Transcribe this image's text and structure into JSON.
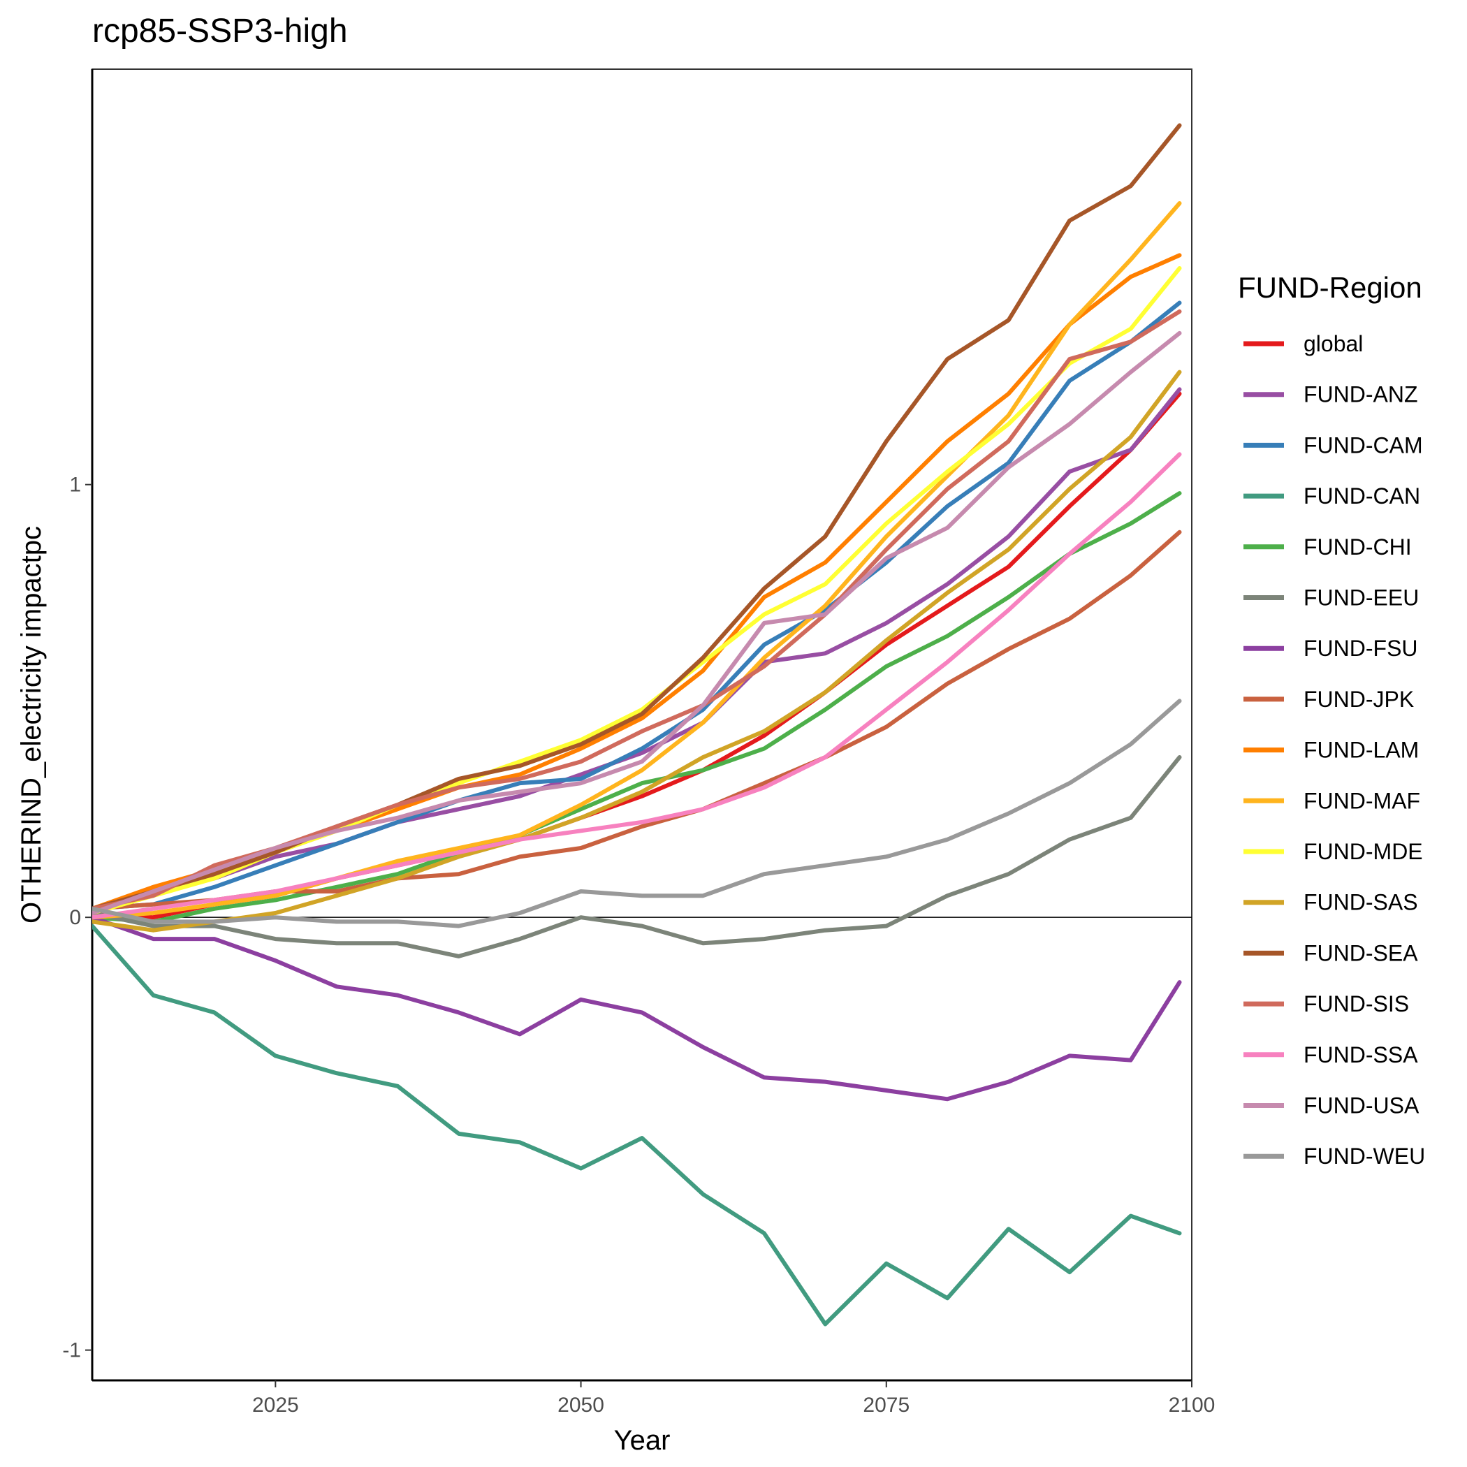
{
  "chart_data": {
    "type": "line",
    "title": "rcp85-SSP3-high",
    "xlabel": "Year",
    "ylabel": "OTHERIND_electricity impactpc",
    "xlim": [
      2010,
      2100
    ],
    "ylim": [
      -1.07,
      1.96
    ],
    "xticks": [
      2025,
      2050,
      2075,
      2100
    ],
    "yticks": [
      -1,
      0,
      1
    ],
    "hline": 0,
    "grid": false,
    "legend": {
      "title": "FUND-Region",
      "position": "right"
    },
    "x": [
      2010,
      2015,
      2020,
      2025,
      2030,
      2035,
      2040,
      2045,
      2050,
      2055,
      2060,
      2065,
      2070,
      2075,
      2080,
      2085,
      2090,
      2095,
      2099
    ],
    "series": [
      {
        "name": "global",
        "color": "#e41a1c",
        "values": [
          0.01,
          0.0,
          0.03,
          0.05,
          0.09,
          0.12,
          0.15,
          0.18,
          0.23,
          0.28,
          0.34,
          0.42,
          0.52,
          0.63,
          0.72,
          0.81,
          0.95,
          1.08,
          1.21
        ]
      },
      {
        "name": "FUND-ANZ",
        "color": "#984ea3",
        "values": [
          0.01,
          0.07,
          0.09,
          0.14,
          0.17,
          0.22,
          0.25,
          0.28,
          0.33,
          0.38,
          0.45,
          0.59,
          0.61,
          0.68,
          0.77,
          0.88,
          1.03,
          1.08,
          1.22
        ]
      },
      {
        "name": "FUND-CAM",
        "color": "#377eb8",
        "values": [
          0.02,
          0.03,
          0.07,
          0.12,
          0.17,
          0.22,
          0.27,
          0.31,
          0.32,
          0.39,
          0.48,
          0.63,
          0.71,
          0.82,
          0.95,
          1.05,
          1.24,
          1.33,
          1.42
        ]
      },
      {
        "name": "FUND-CAN",
        "color": "#419b80",
        "values": [
          -0.02,
          -0.18,
          -0.22,
          -0.32,
          -0.36,
          -0.39,
          -0.5,
          -0.52,
          -0.58,
          -0.51,
          -0.64,
          -0.73,
          -0.94,
          -0.8,
          -0.88,
          -0.72,
          -0.82,
          -0.69,
          -0.73
        ]
      },
      {
        "name": "FUND-CHI",
        "color": "#4daf4a",
        "values": [
          0.0,
          -0.01,
          0.02,
          0.04,
          0.07,
          0.1,
          0.15,
          0.19,
          0.25,
          0.31,
          0.34,
          0.39,
          0.48,
          0.58,
          0.65,
          0.74,
          0.84,
          0.91,
          0.98
        ]
      },
      {
        "name": "FUND-EEU",
        "color": "#7c8479",
        "values": [
          0.01,
          -0.02,
          -0.02,
          -0.05,
          -0.06,
          -0.06,
          -0.09,
          -0.05,
          0.0,
          -0.02,
          -0.06,
          -0.05,
          -0.03,
          -0.02,
          0.05,
          0.1,
          0.18,
          0.23,
          0.37
        ]
      },
      {
        "name": "FUND-FSU",
        "color": "#8c3fa0",
        "values": [
          0.0,
          -0.05,
          -0.05,
          -0.1,
          -0.16,
          -0.18,
          -0.22,
          -0.27,
          -0.19,
          -0.22,
          -0.3,
          -0.37,
          -0.38,
          -0.4,
          -0.42,
          -0.38,
          -0.32,
          -0.33,
          -0.15
        ]
      },
      {
        "name": "FUND-JPK",
        "color": "#c9613f",
        "values": [
          0.02,
          0.03,
          0.04,
          0.06,
          0.06,
          0.09,
          0.1,
          0.14,
          0.16,
          0.21,
          0.25,
          0.31,
          0.37,
          0.44,
          0.54,
          0.62,
          0.69,
          0.79,
          0.89
        ]
      },
      {
        "name": "FUND-LAM",
        "color": "#ff7f00",
        "values": [
          0.02,
          0.07,
          0.11,
          0.15,
          0.2,
          0.25,
          0.3,
          0.33,
          0.39,
          0.46,
          0.57,
          0.74,
          0.82,
          0.96,
          1.1,
          1.21,
          1.37,
          1.48,
          1.53
        ]
      },
      {
        "name": "FUND-MAF",
        "color": "#ffb41d",
        "values": [
          0.0,
          0.01,
          0.03,
          0.05,
          0.09,
          0.13,
          0.16,
          0.19,
          0.26,
          0.34,
          0.45,
          0.6,
          0.72,
          0.88,
          1.02,
          1.16,
          1.37,
          1.52,
          1.65
        ]
      },
      {
        "name": "FUND-MDE",
        "color": "#ffff33",
        "values": [
          0.01,
          0.05,
          0.09,
          0.15,
          0.2,
          0.26,
          0.31,
          0.36,
          0.41,
          0.48,
          0.59,
          0.7,
          0.77,
          0.91,
          1.03,
          1.14,
          1.28,
          1.36,
          1.5
        ]
      },
      {
        "name": "FUND-SAS",
        "color": "#d1a426",
        "values": [
          -0.01,
          -0.03,
          -0.01,
          0.01,
          0.05,
          0.09,
          0.14,
          0.18,
          0.23,
          0.29,
          0.37,
          0.43,
          0.52,
          0.64,
          0.75,
          0.85,
          0.99,
          1.11,
          1.26
        ]
      },
      {
        "name": "FUND-SEA",
        "color": "#a65628",
        "values": [
          0.02,
          0.06,
          0.1,
          0.15,
          0.21,
          0.26,
          0.32,
          0.35,
          0.4,
          0.47,
          0.6,
          0.76,
          0.88,
          1.1,
          1.29,
          1.38,
          1.61,
          1.69,
          1.83
        ]
      },
      {
        "name": "FUND-SIS",
        "color": "#d06a5c",
        "values": [
          0.02,
          0.05,
          0.12,
          0.16,
          0.21,
          0.26,
          0.3,
          0.32,
          0.36,
          0.43,
          0.49,
          0.58,
          0.7,
          0.85,
          0.99,
          1.1,
          1.29,
          1.33,
          1.4
        ]
      },
      {
        "name": "FUND-SSA",
        "color": "#f781bf",
        "values": [
          0.0,
          0.02,
          0.04,
          0.06,
          0.09,
          0.12,
          0.15,
          0.18,
          0.2,
          0.22,
          0.25,
          0.3,
          0.37,
          0.48,
          0.59,
          0.71,
          0.84,
          0.96,
          1.07
        ]
      },
      {
        "name": "FUND-USA",
        "color": "#c68aae",
        "values": [
          0.01,
          0.06,
          0.11,
          0.16,
          0.2,
          0.23,
          0.27,
          0.29,
          0.31,
          0.36,
          0.49,
          0.68,
          0.7,
          0.83,
          0.9,
          1.04,
          1.14,
          1.26,
          1.35
        ]
      },
      {
        "name": "FUND-WEU",
        "color": "#999999",
        "values": [
          0.02,
          -0.01,
          -0.01,
          0.0,
          -0.01,
          -0.01,
          -0.02,
          0.01,
          0.06,
          0.05,
          0.05,
          0.1,
          0.12,
          0.14,
          0.18,
          0.24,
          0.31,
          0.4,
          0.5
        ]
      }
    ]
  }
}
